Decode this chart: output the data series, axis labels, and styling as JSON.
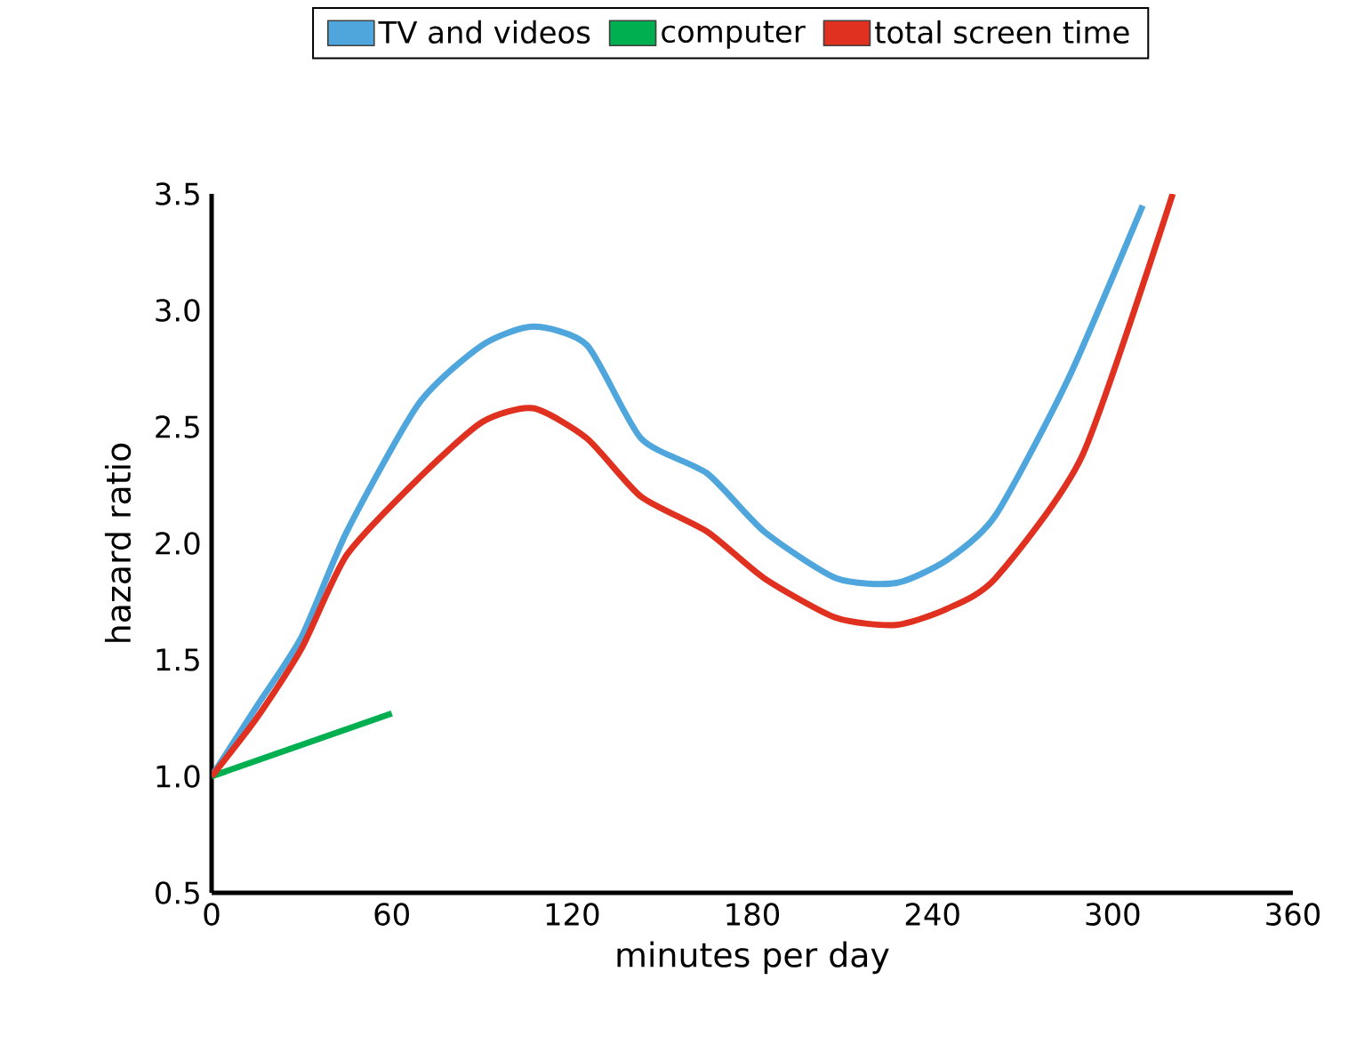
{
  "chart_data": {
    "type": "line",
    "xlabel": "minutes per day",
    "ylabel": "hazard ratio",
    "xlim": [
      0,
      360
    ],
    "xticks": [
      0,
      60,
      120,
      180,
      240,
      300,
      360
    ],
    "ylim": [
      0.5,
      3.5
    ],
    "yticks": [
      {
        "value": 0.5,
        "label": "0.5"
      },
      {
        "value": 1.0,
        "label": "1.0"
      },
      {
        "value": 1.5,
        "label": "1.5"
      },
      {
        "value": 2.0,
        "label": "2.0"
      },
      {
        "value": 2.5,
        "label": "2.5"
      },
      {
        "value": 3.0,
        "label": "3.0"
      },
      {
        "value": 3.5,
        "label": "3.5"
      }
    ],
    "legend": "top",
    "grid": false,
    "marker": "none",
    "line_style": "solid",
    "series": [
      {
        "name": "TV and videos",
        "color": "#4ea6dc",
        "x": [
          0,
          15,
          30,
          45,
          69,
          90,
          107,
          125,
          143,
          165,
          184,
          208,
          228,
          245,
          261,
          285,
          310
        ],
        "values": [
          1.0,
          1.3,
          1.6,
          2.05,
          2.6,
          2.85,
          2.93,
          2.85,
          2.45,
          2.3,
          2.05,
          1.85,
          1.83,
          1.93,
          2.12,
          2.7,
          3.45
        ]
      },
      {
        "name": "computer",
        "color": "#00b050",
        "x": [
          0,
          60
        ],
        "values": [
          1.0,
          1.27
        ]
      },
      {
        "name": "total screen time",
        "color": "#e03020",
        "x": [
          0,
          15,
          30,
          45,
          69,
          90,
          107,
          125,
          143,
          165,
          184,
          208,
          228,
          245,
          261,
          290,
          320
        ],
        "values": [
          1.0,
          1.25,
          1.55,
          1.95,
          2.28,
          2.52,
          2.58,
          2.45,
          2.2,
          2.05,
          1.85,
          1.68,
          1.65,
          1.72,
          1.85,
          2.38,
          3.5
        ]
      }
    ]
  }
}
